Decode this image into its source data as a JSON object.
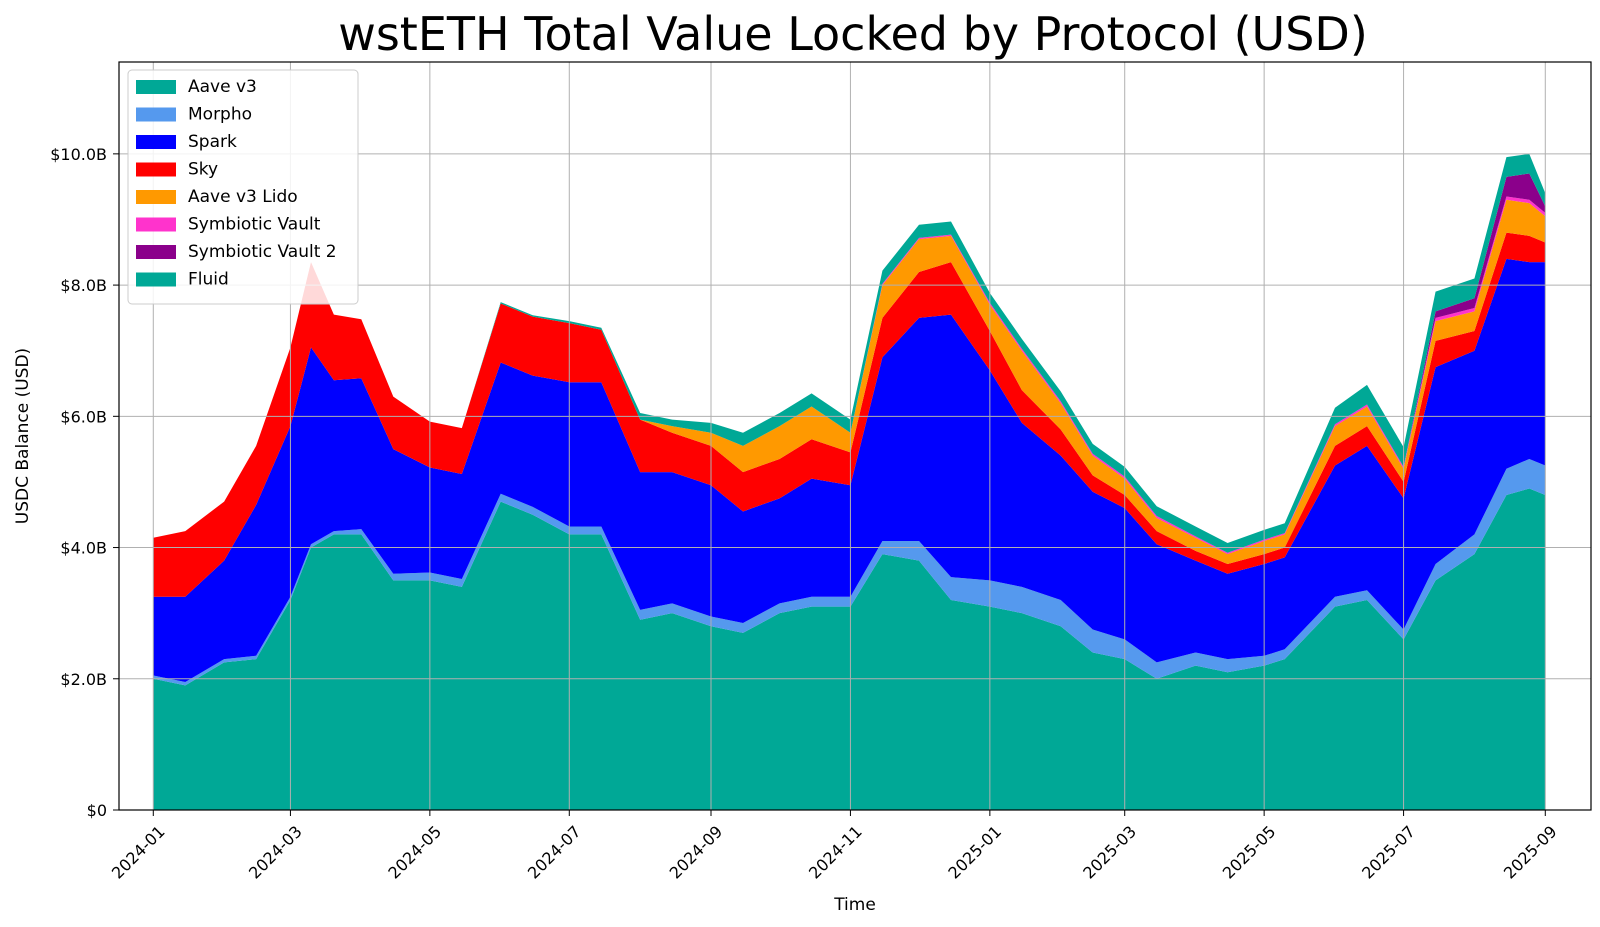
{
  "chart_data": {
    "type": "area",
    "stacked": true,
    "title": "wstETH Total Value Locked by Protocol (USD)",
    "xlabel": "Time",
    "ylabel": "USDC Balance (USD)",
    "ylim": [
      0,
      11400000000
    ],
    "xlim": [
      "2023-12-17",
      "2025-09-21"
    ],
    "grid": true,
    "legend_position": "top-left",
    "x_ticks": [
      "2024-01",
      "2024-03",
      "2024-05",
      "2024-07",
      "2024-09",
      "2024-11",
      "2025-01",
      "2025-03",
      "2025-05",
      "2025-07",
      "2025-09"
    ],
    "x_tick_dates": [
      "2024-01-01",
      "2024-03-01",
      "2024-05-01",
      "2024-07-01",
      "2024-09-01",
      "2024-11-01",
      "2025-01-01",
      "2025-03-01",
      "2025-05-01",
      "2025-07-01",
      "2025-09-01"
    ],
    "y_ticks": [
      0,
      2000000000,
      4000000000,
      6000000000,
      8000000000,
      10000000000
    ],
    "y_tick_labels": [
      "$0",
      "$2.0B",
      "$4.0B",
      "$6.0B",
      "$8.0B",
      "$10.0B"
    ],
    "x": [
      "2024-01-01",
      "2024-01-15",
      "2024-02-01",
      "2024-02-15",
      "2024-03-01",
      "2024-03-10",
      "2024-03-20",
      "2024-04-01",
      "2024-04-15",
      "2024-05-01",
      "2024-05-15",
      "2024-06-01",
      "2024-06-15",
      "2024-07-01",
      "2024-07-15",
      "2024-08-01",
      "2024-08-15",
      "2024-09-01",
      "2024-09-15",
      "2024-10-01",
      "2024-10-15",
      "2024-11-01",
      "2024-11-15",
      "2024-12-01",
      "2024-12-15",
      "2025-01-01",
      "2025-01-15",
      "2025-02-01",
      "2025-02-15",
      "2025-03-01",
      "2025-03-15",
      "2025-04-01",
      "2025-04-15",
      "2025-05-01",
      "2025-05-10",
      "2025-06-01",
      "2025-06-15",
      "2025-07-01",
      "2025-07-15",
      "2025-08-01",
      "2025-08-15",
      "2025-08-25",
      "2025-09-01"
    ],
    "series": [
      {
        "name": "Aave v3",
        "color": "#00a896",
        "values": [
          2.0,
          1.9,
          2.25,
          2.3,
          3.2,
          4.0,
          4.2,
          4.2,
          3.5,
          3.5,
          3.4,
          4.7,
          4.5,
          4.2,
          4.2,
          2.9,
          3.0,
          2.8,
          2.7,
          3.0,
          3.1,
          3.1,
          3.9,
          3.8,
          3.2,
          3.1,
          3.0,
          2.8,
          2.4,
          2.3,
          2.0,
          2.2,
          2.1,
          2.2,
          2.3,
          3.1,
          3.2,
          2.6,
          3.5,
          3.9,
          4.8,
          4.9,
          4.8
        ]
      },
      {
        "name": "Morpho",
        "color": "#5599ee",
        "values": [
          0.05,
          0.05,
          0.05,
          0.05,
          0.05,
          0.05,
          0.05,
          0.08,
          0.1,
          0.12,
          0.12,
          0.12,
          0.12,
          0.12,
          0.12,
          0.15,
          0.15,
          0.15,
          0.15,
          0.15,
          0.15,
          0.15,
          0.2,
          0.3,
          0.35,
          0.4,
          0.4,
          0.4,
          0.35,
          0.3,
          0.25,
          0.2,
          0.2,
          0.15,
          0.15,
          0.15,
          0.15,
          0.15,
          0.25,
          0.3,
          0.4,
          0.45,
          0.45
        ]
      },
      {
        "name": "Spark",
        "color": "#0000ff",
        "values": [
          1.2,
          1.3,
          1.5,
          2.3,
          2.6,
          3.0,
          2.3,
          2.3,
          1.9,
          1.6,
          1.6,
          2.0,
          2.0,
          2.2,
          2.2,
          2.1,
          2.0,
          2.0,
          1.7,
          1.6,
          1.8,
          1.7,
          2.8,
          3.4,
          4.0,
          3.2,
          2.5,
          2.2,
          2.1,
          2.0,
          1.8,
          1.4,
          1.3,
          1.4,
          1.4,
          2.0,
          2.2,
          2.0,
          3.0,
          2.8,
          3.2,
          3.0,
          3.1
        ]
      },
      {
        "name": "Sky",
        "color": "#ff0000",
        "values": [
          0.9,
          1.0,
          0.9,
          0.9,
          1.2,
          1.3,
          1.0,
          0.9,
          0.8,
          0.7,
          0.7,
          0.9,
          0.9,
          0.9,
          0.8,
          0.8,
          0.6,
          0.6,
          0.6,
          0.6,
          0.6,
          0.5,
          0.6,
          0.7,
          0.8,
          0.6,
          0.5,
          0.4,
          0.25,
          0.2,
          0.2,
          0.15,
          0.15,
          0.15,
          0.15,
          0.3,
          0.3,
          0.25,
          0.4,
          0.3,
          0.4,
          0.4,
          0.3
        ]
      },
      {
        "name": "Aave v3 Lido",
        "color": "#ff9900",
        "values": [
          0,
          0,
          0,
          0,
          0,
          0,
          0,
          0,
          0,
          0,
          0,
          0,
          0,
          0,
          0,
          0,
          0.1,
          0.2,
          0.4,
          0.5,
          0.5,
          0.3,
          0.5,
          0.5,
          0.4,
          0.4,
          0.6,
          0.4,
          0.3,
          0.25,
          0.2,
          0.2,
          0.15,
          0.2,
          0.2,
          0.3,
          0.3,
          0.2,
          0.3,
          0.3,
          0.5,
          0.5,
          0.4
        ]
      },
      {
        "name": "Symbiotic Vault",
        "color": "#ff33cc",
        "values": [
          0,
          0,
          0,
          0,
          0,
          0,
          0,
          0,
          0,
          0,
          0,
          0,
          0,
          0,
          0,
          0,
          0,
          0,
          0,
          0,
          0,
          0,
          0.02,
          0.02,
          0.02,
          0.03,
          0.03,
          0.03,
          0.03,
          0.03,
          0.03,
          0.02,
          0.02,
          0.02,
          0.02,
          0.03,
          0.03,
          0.03,
          0.05,
          0.05,
          0.05,
          0.05,
          0.05
        ]
      },
      {
        "name": "Symbiotic Vault 2",
        "color": "#8b008b",
        "values": [
          0,
          0,
          0,
          0,
          0,
          0,
          0,
          0,
          0,
          0,
          0,
          0,
          0,
          0,
          0,
          0,
          0,
          0,
          0,
          0,
          0,
          0,
          0,
          0,
          0,
          0,
          0,
          0,
          0,
          0,
          0,
          0,
          0,
          0,
          0,
          0,
          0,
          0,
          0.1,
          0.15,
          0.3,
          0.4,
          0.1
        ]
      },
      {
        "name": "Fluid",
        "color": "#00a896",
        "values": [
          0,
          0,
          0,
          0,
          0,
          0,
          0,
          0,
          0,
          0,
          0,
          0.02,
          0.02,
          0.03,
          0.03,
          0.1,
          0.1,
          0.15,
          0.2,
          0.2,
          0.2,
          0.2,
          0.2,
          0.2,
          0.2,
          0.15,
          0.15,
          0.15,
          0.15,
          0.15,
          0.15,
          0.15,
          0.15,
          0.15,
          0.15,
          0.25,
          0.3,
          0.3,
          0.3,
          0.3,
          0.3,
          0.3,
          0.2
        ]
      }
    ],
    "value_unit": "billions USD"
  }
}
